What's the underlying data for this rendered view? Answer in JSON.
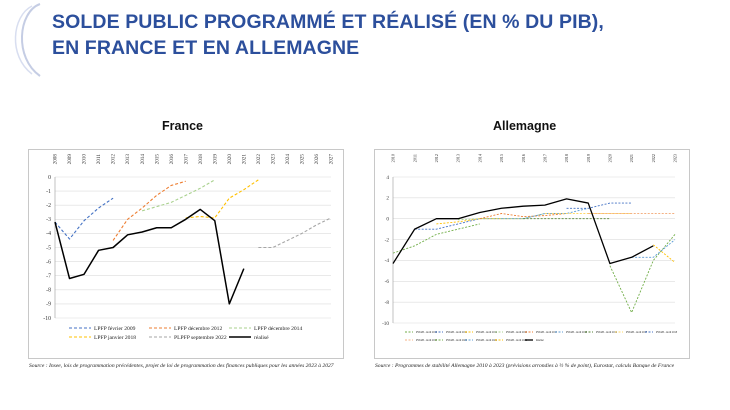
{
  "title": {
    "line1": "SOLDE PUBLIC PROGRAMMÉ ET RÉALISÉ (EN % DU PIB),",
    "line2": "EN FRANCE ET EN ALLEMAGNE"
  },
  "colors": {
    "title": "#2c4f9c",
    "deco": "#c5cde4"
  },
  "france": {
    "heading": "France",
    "source": "Source : Insee, lois de programmation précédentes, projet de loi de programmation des finances publiques pour les années 2023 à 2027"
  },
  "allemagne": {
    "heading": "Allemagne",
    "source": "Source : Programmes de stabilité Allemagne 2010 à 2023 (prévisions arrondies à ½ % de point), Eurostat, calculs Banque de France"
  },
  "chart_data": [
    {
      "type": "line",
      "title": "France",
      "x": [
        "2008",
        "2009",
        "2010",
        "2011",
        "2012",
        "2013",
        "2014",
        "2015",
        "2016",
        "2017",
        "2018",
        "2019",
        "2020",
        "2021",
        "2022",
        "2023",
        "2024",
        "2025",
        "2026",
        "2027"
      ],
      "ylim": [
        -10,
        0
      ],
      "yticks": [
        "0",
        "-1",
        "-2",
        "-3",
        "-4",
        "-5",
        "-6",
        "-7",
        "-8",
        "-9",
        "-10"
      ],
      "xaxis_position": "top",
      "legend_position": "bottom",
      "series": [
        {
          "name": "LPFP février 2009",
          "color": "#4472c4",
          "dash": true,
          "x": [
            "2008",
            "2009",
            "2010",
            "2011",
            "2012"
          ],
          "values": [
            -3.2,
            -4.4,
            -3.1,
            -2.2,
            -1.5
          ]
        },
        {
          "name": "LPFP décembre 2012",
          "color": "#ed7d31",
          "dash": true,
          "x": [
            "2012",
            "2013",
            "2014",
            "2015",
            "2016",
            "2017"
          ],
          "values": [
            -4.5,
            -3.0,
            -2.2,
            -1.3,
            -0.6,
            -0.3
          ]
        },
        {
          "name": "LPFP décembre 2014",
          "color": "#a9d18e",
          "dash": true,
          "x": [
            "2014",
            "2015",
            "2016",
            "2017",
            "2018",
            "2019"
          ],
          "values": [
            -2.4,
            -2.1,
            -1.8,
            -1.3,
            -0.8,
            -0.2
          ]
        },
        {
          "name": "LPFP janvier 2018",
          "color": "#ffc000",
          "dash": true,
          "x": [
            "2017",
            "2018",
            "2019",
            "2020",
            "2021",
            "2022"
          ],
          "values": [
            -2.9,
            -2.8,
            -2.9,
            -1.5,
            -0.9,
            -0.2
          ]
        },
        {
          "name": "PLPFP septembre 2022",
          "color": "#a6a6a6",
          "dash": true,
          "x": [
            "2022",
            "2023",
            "2024",
            "2025",
            "2026",
            "2027"
          ],
          "values": [
            -5.0,
            -5.0,
            -4.5,
            -4.0,
            -3.4,
            -2.9
          ]
        },
        {
          "name": "réalisé",
          "color": "#000000",
          "dash": false,
          "x": [
            "2008",
            "2009",
            "2010",
            "2011",
            "2012",
            "2013",
            "2014",
            "2015",
            "2016",
            "2017",
            "2018",
            "2019",
            "2020",
            "2021"
          ],
          "values": [
            -3.2,
            -7.2,
            -6.9,
            -5.2,
            -5.0,
            -4.1,
            -3.9,
            -3.6,
            -3.6,
            -3.0,
            -2.3,
            -3.1,
            -9.0,
            -6.5
          ]
        }
      ]
    },
    {
      "type": "line",
      "title": "Allemagne",
      "x": [
        "2010",
        "2011",
        "2012",
        "2013",
        "2014",
        "2015",
        "2016",
        "2017",
        "2018",
        "2019",
        "2020",
        "2021",
        "2022",
        "2023"
      ],
      "ylim": [
        -10,
        4
      ],
      "yticks": [
        "4",
        "2",
        "0",
        "-2",
        "-4",
        "-6",
        "-8",
        "-10"
      ],
      "xaxis_position": "top",
      "legend_position": "bottom",
      "series": [
        {
          "name": "PSTAB - Avril 2010",
          "color": "#70ad47",
          "dash": true,
          "x": [
            "2010",
            "2011",
            "2012",
            "2013",
            "2014"
          ],
          "values": [
            -3.3,
            -2.6,
            -1.5,
            -1.0,
            -0.5
          ]
        },
        {
          "name": "PSTAB - Avril 2011",
          "color": "#4472c4",
          "dash": true,
          "x": [
            "2011",
            "2012",
            "2013",
            "2014",
            "2015"
          ],
          "values": [
            -1.0,
            -1.0,
            -0.5,
            0.0,
            0.0
          ]
        },
        {
          "name": "PSTAB - Avril 2012",
          "color": "#ffc000",
          "dash": true,
          "x": [
            "2012",
            "2013",
            "2014",
            "2015",
            "2016"
          ],
          "values": [
            -0.5,
            -0.3,
            0.0,
            0.0,
            0.0
          ]
        },
        {
          "name": "PSTAB - Avril 2013",
          "color": "#a9d18e",
          "dash": true,
          "x": [
            "2013",
            "2014",
            "2015",
            "2016",
            "2017"
          ],
          "values": [
            -0.1,
            0.0,
            0.0,
            0.0,
            0.5
          ]
        },
        {
          "name": "PSTAB - Avril 2014",
          "color": "#ed7d31",
          "dash": true,
          "x": [
            "2014",
            "2015",
            "2016",
            "2017",
            "2018"
          ],
          "values": [
            0.0,
            0.5,
            0.2,
            0.3,
            0.5
          ]
        },
        {
          "name": "PSTAB - Avril 2015",
          "color": "#5b9bd5",
          "dash": true,
          "x": [
            "2015",
            "2016",
            "2017",
            "2018",
            "2019"
          ],
          "values": [
            0.0,
            0.0,
            0.5,
            0.5,
            1.0
          ]
        },
        {
          "name": "PSTAB - Avril 2016",
          "color": "#548235",
          "dash": true,
          "x": [
            "2016",
            "2017",
            "2018",
            "2019",
            "2020"
          ],
          "values": [
            0.0,
            0.0,
            0.0,
            0.0,
            0.0
          ]
        },
        {
          "name": "PSTAB - Avril 2017",
          "color": "#ffd966",
          "dash": true,
          "x": [
            "2017",
            "2018",
            "2019",
            "2020",
            "2021"
          ],
          "values": [
            0.5,
            0.5,
            0.5,
            0.5,
            0.5
          ]
        },
        {
          "name": "PSTAB - Avril 2018",
          "color": "#4472c4",
          "dash": true,
          "x": [
            "2018",
            "2019",
            "2020",
            "2021"
          ],
          "values": [
            1.0,
            1.0,
            1.5,
            1.5
          ]
        },
        {
          "name": "PSTAB - Avril 2019",
          "color": "#f4b183",
          "dash": true,
          "x": [
            "2019",
            "2020",
            "2021",
            "2022",
            "2023"
          ],
          "values": [
            0.5,
            0.5,
            0.5,
            0.5,
            0.5
          ]
        },
        {
          "name": "PSTAB - Avril 2020",
          "color": "#70ad47",
          "dash": true,
          "x": [
            "2020",
            "2021",
            "2022",
            "2023"
          ],
          "values": [
            -4.5,
            -9.0,
            -4.0,
            -1.5
          ]
        },
        {
          "name": "PSTAB - Avril 2021",
          "color": "#5b9bd5",
          "dash": true,
          "x": [
            "2021",
            "2022",
            "2023"
          ],
          "values": [
            -3.7,
            -3.7,
            -2.0
          ]
        },
        {
          "name": "PSTAB - Avril 2022",
          "color": "#ffc000",
          "dash": true,
          "x": [
            "2022",
            "2023"
          ],
          "values": [
            -2.5,
            -4.2
          ]
        },
        {
          "name": "Réalisé",
          "color": "#000000",
          "dash": false,
          "x": [
            "2010",
            "2011",
            "2012",
            "2013",
            "2014",
            "2015",
            "2016",
            "2017",
            "2018",
            "2019",
            "2020",
            "2021",
            "2022"
          ],
          "values": [
            -4.3,
            -1.0,
            0.0,
            0.0,
            0.6,
            1.0,
            1.2,
            1.3,
            1.9,
            1.5,
            -4.3,
            -3.7,
            -2.6
          ]
        }
      ]
    }
  ]
}
